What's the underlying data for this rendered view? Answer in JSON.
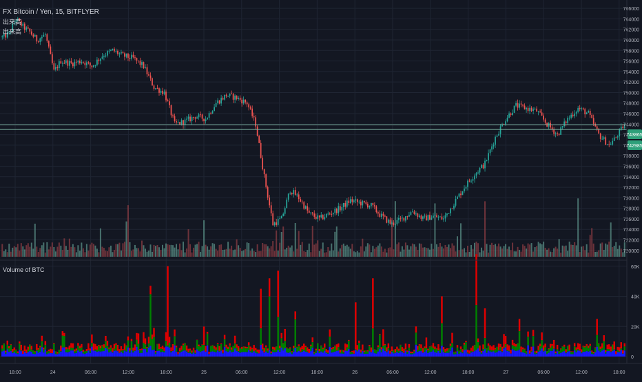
{
  "header": {
    "title": "FX Bitcoin / Yen, 15, BITFLYER",
    "legend_lines": [
      "出来高",
      "出来高"
    ],
    "volume_pane_title": "Volume of BTC"
  },
  "price_axis": {
    "ticks": [
      "766000",
      "764000",
      "762000",
      "760000",
      "758000",
      "756000",
      "754000",
      "752000",
      "750000",
      "748000",
      "746000",
      "744000",
      "742000",
      "740000",
      "738000",
      "736000",
      "734000",
      "732000",
      "730000",
      "728000",
      "726000",
      "724000",
      "722000",
      "720000"
    ],
    "badges": [
      "743865",
      "742985"
    ]
  },
  "volume_axis": {
    "ticks": [
      "60K",
      "40K",
      "20K",
      "0"
    ]
  },
  "time_axis": {
    "ticks": [
      "18:00",
      "24",
      "06:00",
      "12:00",
      "18:00",
      "25",
      "06:00",
      "12:00",
      "18:00",
      "26",
      "06:00",
      "12:00",
      "18:00",
      "27",
      "06:00",
      "12:00",
      "18:00"
    ]
  },
  "colors": {
    "background": "#131722",
    "grid": "#1f2533",
    "up": "#26a69a",
    "down": "#ef5350",
    "vol_up": "#008000",
    "vol_down": "#e00000",
    "vol_base": "#1a1aff",
    "text": "#b2b5be",
    "hline": "#7fb6a4"
  },
  "chart_data": [
    {
      "type": "candlestick",
      "title": "FX Bitcoin / Yen, 15, BITFLYER",
      "ylim": [
        718800,
        766800
      ],
      "y_ticks": [
        766000,
        764000,
        762000,
        760000,
        758000,
        756000,
        754000,
        752000,
        750000,
        748000,
        746000,
        744000,
        742000,
        740000,
        738000,
        736000,
        734000,
        732000,
        730000,
        728000,
        726000,
        724000,
        722000,
        720000
      ],
      "x_ticks": [
        "18:00",
        "24",
        "06:00",
        "12:00",
        "18:00",
        "25",
        "06:00",
        "12:00",
        "18:00",
        "26",
        "06:00",
        "12:00",
        "18:00",
        "27",
        "06:00",
        "12:00",
        "18:00"
      ],
      "horizontal_lines": [
        743865,
        742985
      ],
      "close_path": [
        {
          "bar": 0,
          "close": 760500
        },
        {
          "bar": 4,
          "close": 761200
        },
        {
          "bar": 8,
          "close": 764000
        },
        {
          "bar": 12,
          "close": 762500
        },
        {
          "bar": 16,
          "close": 761500
        },
        {
          "bar": 20,
          "close": 760000
        },
        {
          "bar": 25,
          "close": 761000
        },
        {
          "bar": 30,
          "close": 754000
        },
        {
          "bar": 34,
          "close": 756000
        },
        {
          "bar": 40,
          "close": 755500
        },
        {
          "bar": 46,
          "close": 756000
        },
        {
          "bar": 52,
          "close": 755000
        },
        {
          "bar": 58,
          "close": 757000
        },
        {
          "bar": 64,
          "close": 758000
        },
        {
          "bar": 70,
          "close": 757000
        },
        {
          "bar": 76,
          "close": 756500
        },
        {
          "bar": 82,
          "close": 755000
        },
        {
          "bar": 88,
          "close": 751000
        },
        {
          "bar": 94,
          "close": 750000
        },
        {
          "bar": 100,
          "close": 744000
        },
        {
          "bar": 106,
          "close": 744500
        },
        {
          "bar": 112,
          "close": 745500
        },
        {
          "bar": 118,
          "close": 745000
        },
        {
          "bar": 124,
          "close": 748000
        },
        {
          "bar": 130,
          "close": 749500
        },
        {
          "bar": 136,
          "close": 749000
        },
        {
          "bar": 142,
          "close": 748000
        },
        {
          "bar": 147,
          "close": 744000
        },
        {
          "bar": 152,
          "close": 734000
        },
        {
          "bar": 157,
          "close": 725000
        },
        {
          "bar": 162,
          "close": 726000
        },
        {
          "bar": 167,
          "close": 731500
        },
        {
          "bar": 172,
          "close": 730000
        },
        {
          "bar": 178,
          "close": 727000
        },
        {
          "bar": 184,
          "close": 726000
        },
        {
          "bar": 190,
          "close": 727000
        },
        {
          "bar": 196,
          "close": 728000
        },
        {
          "bar": 202,
          "close": 729500
        },
        {
          "bar": 208,
          "close": 729000
        },
        {
          "bar": 214,
          "close": 728500
        },
        {
          "bar": 220,
          "close": 726500
        },
        {
          "bar": 226,
          "close": 725000
        },
        {
          "bar": 232,
          "close": 726000
        },
        {
          "bar": 238,
          "close": 727500
        },
        {
          "bar": 244,
          "close": 726000
        },
        {
          "bar": 250,
          "close": 726500
        },
        {
          "bar": 256,
          "close": 726000
        },
        {
          "bar": 262,
          "close": 729000
        },
        {
          "bar": 268,
          "close": 732000
        },
        {
          "bar": 274,
          "close": 734500
        },
        {
          "bar": 280,
          "close": 736500
        },
        {
          "bar": 286,
          "close": 741500
        },
        {
          "bar": 292,
          "close": 745000
        },
        {
          "bar": 298,
          "close": 747500
        },
        {
          "bar": 304,
          "close": 747000
        },
        {
          "bar": 310,
          "close": 746500
        },
        {
          "bar": 316,
          "close": 744000
        },
        {
          "bar": 322,
          "close": 742000
        },
        {
          "bar": 328,
          "close": 745000
        },
        {
          "bar": 334,
          "close": 747000
        },
        {
          "bar": 340,
          "close": 746000
        },
        {
          "bar": 346,
          "close": 742000
        },
        {
          "bar": 352,
          "close": 740000
        },
        {
          "bar": 356,
          "close": 741500
        },
        {
          "bar": 360,
          "close": 743500
        }
      ]
    },
    {
      "type": "bar",
      "title": "Volume of BTC",
      "ylim": [
        0,
        64000
      ],
      "y_ticks": [
        60000,
        40000,
        20000,
        0
      ],
      "spikes": [
        {
          "bar": 10,
          "value": 10000
        },
        {
          "bar": 30,
          "value": 9000
        },
        {
          "bar": 62,
          "value": 6000
        },
        {
          "bar": 86,
          "value": 47000
        },
        {
          "bar": 96,
          "value": 60000
        },
        {
          "bar": 100,
          "value": 18000
        },
        {
          "bar": 150,
          "value": 45000
        },
        {
          "bar": 155,
          "value": 52000
        },
        {
          "bar": 160,
          "value": 57000
        },
        {
          "bar": 170,
          "value": 30000
        },
        {
          "bar": 205,
          "value": 36000
        },
        {
          "bar": 215,
          "value": 52000
        },
        {
          "bar": 240,
          "value": 20000
        },
        {
          "bar": 255,
          "value": 40000
        },
        {
          "bar": 275,
          "value": 68000
        },
        {
          "bar": 280,
          "value": 32000
        },
        {
          "bar": 300,
          "value": 25000
        },
        {
          "bar": 320,
          "value": 11000
        },
        {
          "bar": 345,
          "value": 25000
        },
        {
          "bar": 355,
          "value": 10000
        }
      ]
    }
  ]
}
